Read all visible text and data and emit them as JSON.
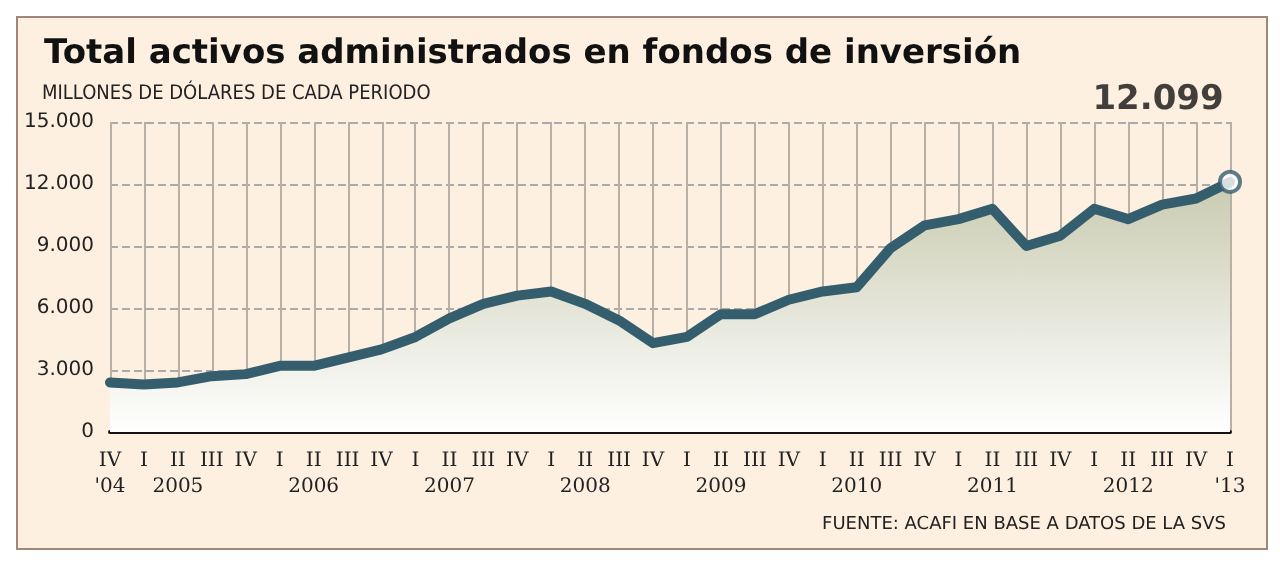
{
  "chart_data": {
    "type": "area",
    "title": "Total activos administrados en fondos de inversión",
    "ylabel": "MILLONES DE DÓLARES DE CADA PERIODO",
    "categories": [
      "IV\n'04",
      "I",
      "II\n2005",
      "III",
      "IV",
      "I",
      "II\n2006",
      "III",
      "IV",
      "I",
      "II\n2007",
      "III",
      "IV",
      "I",
      "II\n2008",
      "III",
      "IV",
      "I",
      "II\n2009",
      "III",
      "IV",
      "I",
      "II\n2010",
      "III",
      "IV",
      "I",
      "II\n2011",
      "III",
      "IV",
      "I",
      "II\n2012",
      "III",
      "IV",
      "I\n'13"
    ],
    "series": [
      {
        "color": "#345d6e",
        "values": [
          2400,
          2300,
          2400,
          2700,
          2800,
          3200,
          3200,
          3600,
          4000,
          4600,
          5500,
          6200,
          6600,
          6800,
          6200,
          5400,
          4300,
          4600,
          5700,
          5700,
          6400,
          6800,
          7000,
          8900,
          10000,
          10300,
          10800,
          9000,
          9500,
          10800,
          10300,
          11000,
          11300,
          12099
        ]
      }
    ],
    "ylim": [
      0,
      15000
    ],
    "yticks": [
      0,
      {
        "value": 3000,
        "label": "3.000"
      },
      {
        "value": 6000,
        "label": "6.000"
      },
      {
        "value": 9000,
        "label": "9.000"
      },
      {
        "value": 12000,
        "label": "12.000"
      },
      {
        "value": 15000,
        "label": "15.000"
      }
    ],
    "grid": true,
    "marker": "none",
    "annotations": [
      {
        "text": "12.099",
        "x": "I\n'13",
        "y": 12099
      },
      "FUENTE: ACAFI EN BASE A DATOS DE LA SVS"
    ]
  }
}
